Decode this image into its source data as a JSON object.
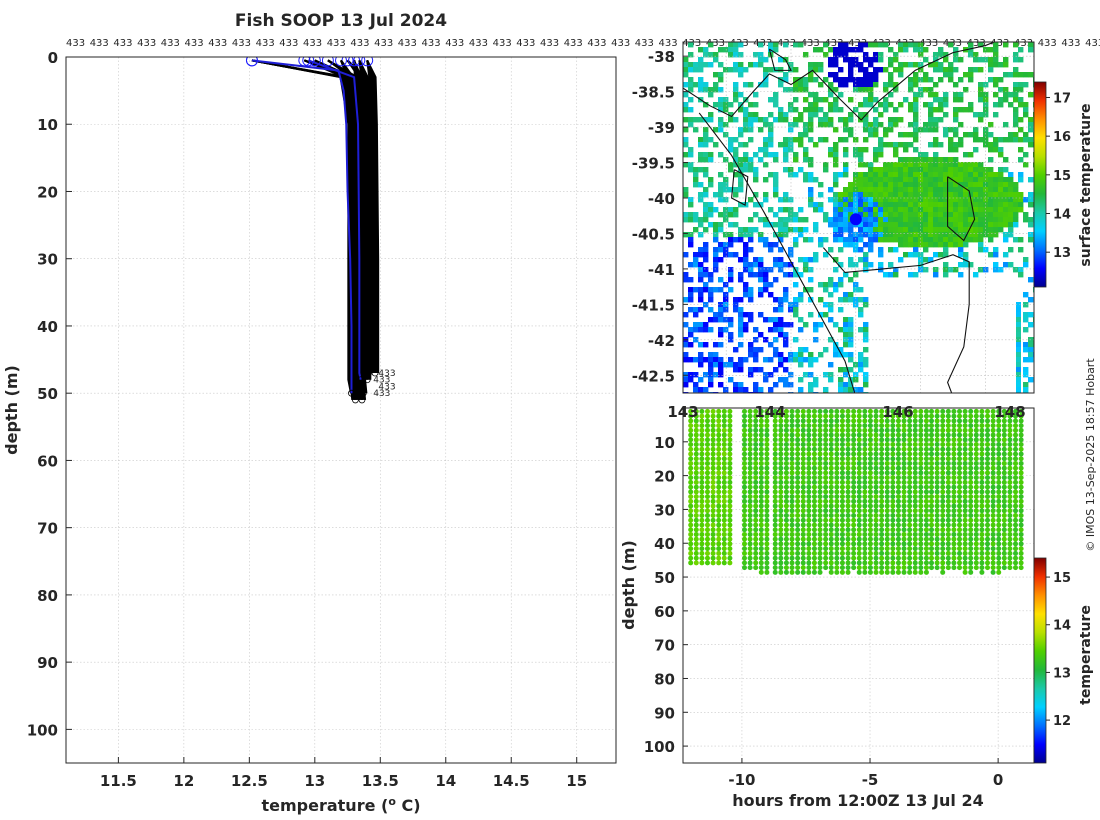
{
  "title": "Fish SOOP 13 Jul 2024",
  "credit": "© IMOS 13-Sep-2025 18:57 Hobart",
  "chart_data": [
    {
      "type": "line",
      "name": "profiles",
      "xlabel": "temperature (° C)",
      "ylabel": "depth (m)",
      "xlim": [
        11.1,
        15.3
      ],
      "ylim": [
        105,
        0
      ],
      "y_reversed": true,
      "xticks": [
        11.5,
        12,
        12.5,
        13,
        13.5,
        14,
        14.5,
        15
      ],
      "yticks": [
        0,
        10,
        20,
        30,
        40,
        50,
        60,
        70,
        80,
        90,
        100
      ],
      "grid": true,
      "profile_label": "433",
      "profile_label_count": 44,
      "series": [
        {
          "color": "#000000",
          "x": [
            12.52,
            13.22,
            13.28,
            13.28,
            13.28,
            13.3
          ],
          "y": [
            0.5,
            3,
            10,
            30,
            48,
            50
          ]
        },
        {
          "color": "#000000",
          "x": [
            12.92,
            13.25,
            13.3,
            13.31,
            13.31,
            13.32
          ],
          "y": [
            0.5,
            3,
            10,
            30,
            48,
            50
          ]
        },
        {
          "color": "#000000",
          "x": [
            13.0,
            13.27,
            13.32,
            13.33,
            13.33,
            13.34
          ],
          "y": [
            0.5,
            3,
            10,
            30,
            48,
            50
          ]
        },
        {
          "color": "#000000",
          "x": [
            13.1,
            13.3,
            13.35,
            13.36,
            13.36,
            13.37
          ],
          "y": [
            0.5,
            3,
            10,
            30,
            48,
            50
          ]
        },
        {
          "color": "#000000",
          "x": [
            13.25,
            13.36,
            13.4,
            13.41,
            13.41,
            13.41
          ],
          "y": [
            0.5,
            3,
            10,
            30,
            47,
            47
          ]
        },
        {
          "color": "#000000",
          "x": [
            13.4,
            13.44,
            13.45,
            13.46,
            13.46,
            13.46
          ],
          "y": [
            0.5,
            3,
            10,
            30,
            47,
            47
          ]
        },
        {
          "color": "#000000",
          "x": [
            13.3,
            13.33,
            13.34,
            13.35,
            13.35,
            13.36
          ],
          "y": [
            0.5,
            3,
            10,
            30,
            49,
            51
          ]
        },
        {
          "color": "#000000",
          "x": [
            13.34,
            13.38,
            13.39,
            13.4,
            13.4,
            13.4
          ],
          "y": [
            0.5,
            3,
            10,
            30,
            47,
            48
          ]
        },
        {
          "color": "#000000",
          "x": [
            13.2,
            13.27,
            13.29,
            13.29,
            13.3,
            13.31
          ],
          "y": [
            0.5,
            3,
            10,
            30,
            49,
            51
          ]
        },
        {
          "color": "#1f1fd6",
          "x": [
            12.52,
            13.18,
            13.22,
            13.24,
            13.25,
            13.27,
            13.28,
            13.28,
            13.28
          ],
          "y": [
            0.5,
            2,
            5,
            10,
            20,
            30,
            40,
            47,
            50
          ]
        },
        {
          "color": "#1f1fd6",
          "x": [
            12.95,
            13.3,
            13.33,
            13.34,
            13.34,
            13.35
          ],
          "y": [
            0.5,
            3,
            10,
            30,
            47,
            48
          ]
        }
      ]
    },
    {
      "type": "heatmap",
      "name": "map",
      "xlim": [
        143.0,
        149.5
      ],
      "ylim": [
        -42.75,
        -37.8
      ],
      "xticks": [
        "143",
        "144",
        "146",
        "148"
      ],
      "yticks": [
        -38,
        -38.5,
        -39,
        -39.5,
        -40,
        -40.5,
        -41,
        -41.5,
        -42,
        -42.5
      ],
      "ytick_labels": [
        "-38",
        "-38.5",
        "-39",
        "-39.5",
        "-40",
        "-40.5",
        "-41",
        "-41.5",
        "-42",
        "-42.5"
      ],
      "colorbar_label": "surface temperature",
      "colorbar_ticks": [
        13,
        14,
        15,
        16,
        17
      ],
      "colorbar_range": [
        12.1,
        17.4
      ],
      "grid": true,
      "vessel_position": [
        146.2,
        -40.3
      ],
      "vessel_color": "#0000ff"
    },
    {
      "type": "scatter",
      "name": "section",
      "xlabel": "hours from 12:00Z 13 Jul 24",
      "ylabel": "depth (m)",
      "xlim": [
        -12.3,
        1.4
      ],
      "ylim": [
        105,
        0
      ],
      "y_reversed": true,
      "xticks": [
        -10,
        -5,
        0
      ],
      "yticks": [
        10,
        20,
        30,
        40,
        50,
        60,
        70,
        80,
        90,
        100
      ],
      "top_tick_labels": [
        "143",
        "144",
        "146",
        "148"
      ],
      "colorbar_label": "temperature",
      "colorbar_ticks": [
        12,
        13,
        14,
        15
      ],
      "colorbar_range": [
        11.1,
        15.4
      ],
      "grid": true,
      "casts": [
        {
          "x_start": -12.0,
          "x_end": -10.4,
          "max_depth": 47,
          "temperature": 13.45
        },
        {
          "x_start": -9.9,
          "x_end": -8.9,
          "max_depth": 49,
          "temperature": 13.3
        },
        {
          "x_start": -8.7,
          "x_end": -2.8,
          "max_depth": 50,
          "temperature": 13.3
        },
        {
          "x_start": -2.6,
          "x_end": 1.1,
          "max_depth": 49,
          "temperature": 13.3
        }
      ]
    }
  ],
  "colormap": [
    "#00008f",
    "#0000ff",
    "#0070ff",
    "#00d0ff",
    "#1cc9a8",
    "#22b83a",
    "#50d000",
    "#b8e000",
    "#ffe000",
    "#ff9000",
    "#f03000",
    "#800000"
  ]
}
